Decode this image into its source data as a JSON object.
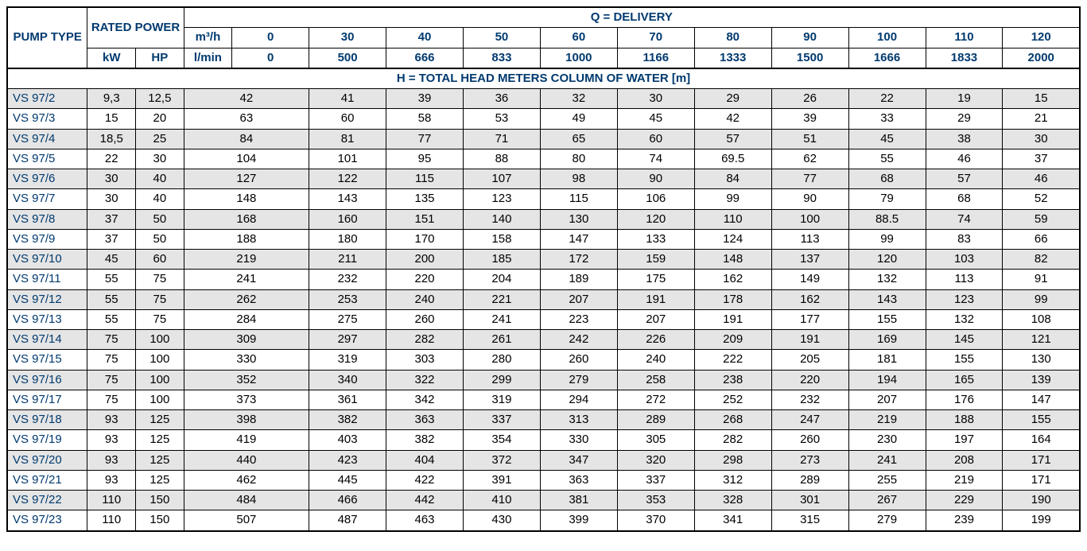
{
  "type": "table",
  "colors": {
    "border": "#000000",
    "header_text": "#003a6f",
    "cell_text": "#000000",
    "shade_bg": "#e5e5e5",
    "white_bg": "#ffffff"
  },
  "font": {
    "family": "Arial",
    "cell_size_pt": 15,
    "header_weight": "bold"
  },
  "col_widths_pct": [
    7.5,
    4.5,
    4.5,
    4.5,
    7.2,
    7.2,
    7.2,
    7.2,
    7.2,
    7.2,
    7.2,
    7.2,
    7.2,
    7.2,
    7.2
  ],
  "header": {
    "pump_type": "PUMP TYPE",
    "rated_power": "RATED POWER",
    "kW": "kW",
    "HP": "HP",
    "delivery": "Q = DELIVERY",
    "m3h": "m³/h",
    "lmin": "l/min",
    "head": "H = TOTAL HEAD METERS COLUMN OF WATER [m]",
    "m3h_values": [
      "0",
      "30",
      "40",
      "50",
      "60",
      "70",
      "80",
      "90",
      "100",
      "110",
      "120"
    ],
    "lmin_values": [
      "0",
      "500",
      "666",
      "833",
      "1000",
      "1166",
      "1333",
      "1500",
      "1666",
      "1833",
      "2000"
    ]
  },
  "rows": [
    {
      "model": "VS 97/2",
      "kW": "9,3",
      "HP": "12,5",
      "v": [
        "42",
        "41",
        "39",
        "36",
        "32",
        "30",
        "29",
        "26",
        "22",
        "19",
        "15"
      ]
    },
    {
      "model": "VS 97/3",
      "kW": "15",
      "HP": "20",
      "v": [
        "63",
        "60",
        "58",
        "53",
        "49",
        "45",
        "42",
        "39",
        "33",
        "29",
        "21"
      ]
    },
    {
      "model": "VS 97/4",
      "kW": "18,5",
      "HP": "25",
      "v": [
        "84",
        "81",
        "77",
        "71",
        "65",
        "60",
        "57",
        "51",
        "45",
        "38",
        "30"
      ]
    },
    {
      "model": "VS 97/5",
      "kW": "22",
      "HP": "30",
      "v": [
        "104",
        "101",
        "95",
        "88",
        "80",
        "74",
        "69.5",
        "62",
        "55",
        "46",
        "37"
      ]
    },
    {
      "model": "VS 97/6",
      "kW": "30",
      "HP": "40",
      "v": [
        "127",
        "122",
        "115",
        "107",
        "98",
        "90",
        "84",
        "77",
        "68",
        "57",
        "46"
      ]
    },
    {
      "model": "VS 97/7",
      "kW": "30",
      "HP": "40",
      "v": [
        "148",
        "143",
        "135",
        "123",
        "115",
        "106",
        "99",
        "90",
        "79",
        "68",
        "52"
      ]
    },
    {
      "model": "VS 97/8",
      "kW": "37",
      "HP": "50",
      "v": [
        "168",
        "160",
        "151",
        "140",
        "130",
        "120",
        "110",
        "100",
        "88.5",
        "74",
        "59"
      ]
    },
    {
      "model": "VS 97/9",
      "kW": "37",
      "HP": "50",
      "v": [
        "188",
        "180",
        "170",
        "158",
        "147",
        "133",
        "124",
        "113",
        "99",
        "83",
        "66"
      ]
    },
    {
      "model": "VS 97/10",
      "kW": "45",
      "HP": "60",
      "v": [
        "219",
        "211",
        "200",
        "185",
        "172",
        "159",
        "148",
        "137",
        "120",
        "103",
        "82"
      ]
    },
    {
      "model": "VS 97/11",
      "kW": "55",
      "HP": "75",
      "v": [
        "241",
        "232",
        "220",
        "204",
        "189",
        "175",
        "162",
        "149",
        "132",
        "113",
        "91"
      ]
    },
    {
      "model": "VS 97/12",
      "kW": "55",
      "HP": "75",
      "v": [
        "262",
        "253",
        "240",
        "221",
        "207",
        "191",
        "178",
        "162",
        "143",
        "123",
        "99"
      ]
    },
    {
      "model": "VS 97/13",
      "kW": "55",
      "HP": "75",
      "v": [
        "284",
        "275",
        "260",
        "241",
        "223",
        "207",
        "191",
        "177",
        "155",
        "132",
        "108"
      ]
    },
    {
      "model": "VS 97/14",
      "kW": "75",
      "HP": "100",
      "v": [
        "309",
        "297",
        "282",
        "261",
        "242",
        "226",
        "209",
        "191",
        "169",
        "145",
        "121"
      ]
    },
    {
      "model": "VS 97/15",
      "kW": "75",
      "HP": "100",
      "v": [
        "330",
        "319",
        "303",
        "280",
        "260",
        "240",
        "222",
        "205",
        "181",
        "155",
        "130"
      ]
    },
    {
      "model": "VS 97/16",
      "kW": "75",
      "HP": "100",
      "v": [
        "352",
        "340",
        "322",
        "299",
        "279",
        "258",
        "238",
        "220",
        "194",
        "165",
        "139"
      ]
    },
    {
      "model": "VS 97/17",
      "kW": "75",
      "HP": "100",
      "v": [
        "373",
        "361",
        "342",
        "319",
        "294",
        "272",
        "252",
        "232",
        "207",
        "176",
        "147"
      ]
    },
    {
      "model": "VS 97/18",
      "kW": "93",
      "HP": "125",
      "v": [
        "398",
        "382",
        "363",
        "337",
        "313",
        "289",
        "268",
        "247",
        "219",
        "188",
        "155"
      ]
    },
    {
      "model": "VS 97/19",
      "kW": "93",
      "HP": "125",
      "v": [
        "419",
        "403",
        "382",
        "354",
        "330",
        "305",
        "282",
        "260",
        "230",
        "197",
        "164"
      ]
    },
    {
      "model": "VS 97/20",
      "kW": "93",
      "HP": "125",
      "v": [
        "440",
        "423",
        "404",
        "372",
        "347",
        "320",
        "298",
        "273",
        "241",
        "208",
        "171"
      ]
    },
    {
      "model": "VS 97/21",
      "kW": "93",
      "HP": "125",
      "v": [
        "462",
        "445",
        "422",
        "391",
        "363",
        "337",
        "312",
        "289",
        "255",
        "219",
        "171"
      ]
    },
    {
      "model": "VS 97/22",
      "kW": "110",
      "HP": "150",
      "v": [
        "484",
        "466",
        "442",
        "410",
        "381",
        "353",
        "328",
        "301",
        "267",
        "229",
        "190"
      ]
    },
    {
      "model": "VS 97/23",
      "kW": "110",
      "HP": "150",
      "v": [
        "507",
        "487",
        "463",
        "430",
        "399",
        "370",
        "341",
        "315",
        "279",
        "239",
        "199"
      ]
    }
  ]
}
